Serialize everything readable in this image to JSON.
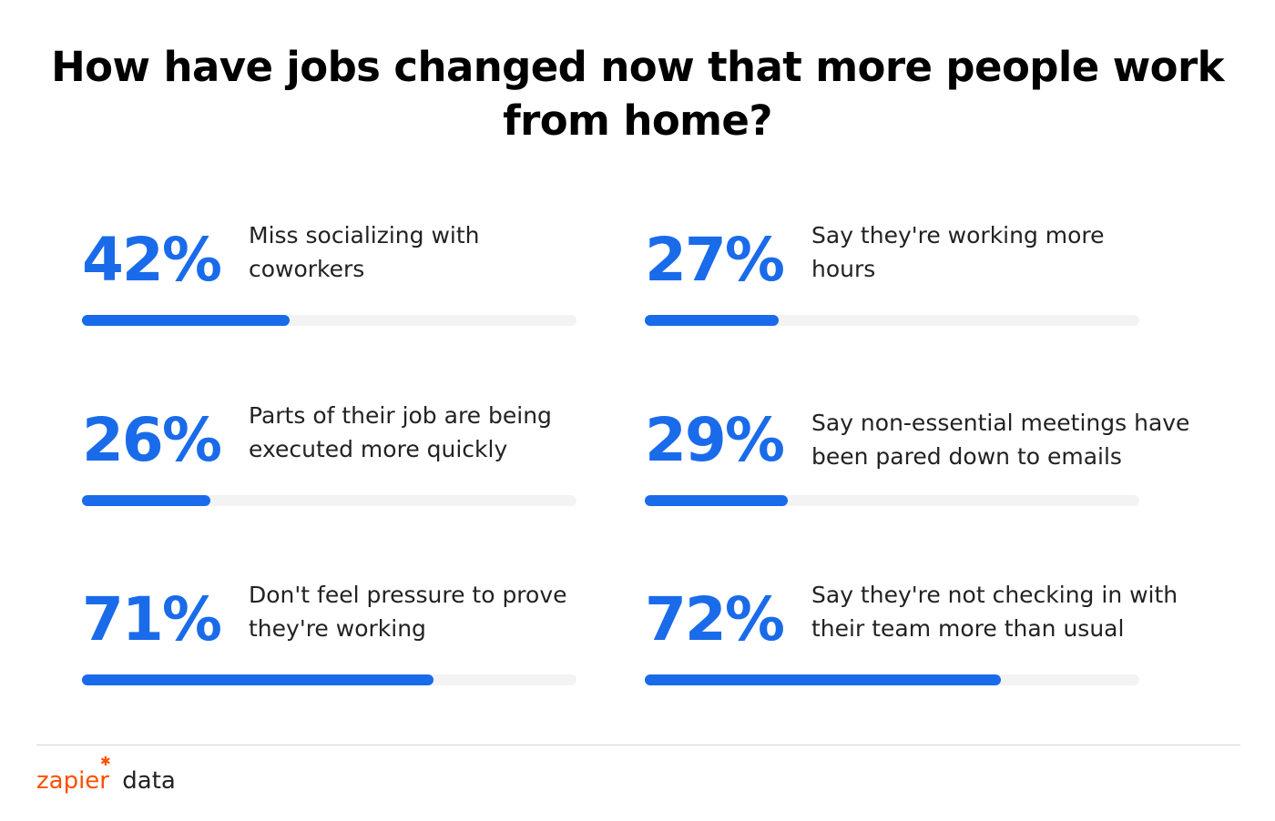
{
  "title": "How have jobs changed now that more people work from home?",
  "colors": {
    "accent": "#1a6bea",
    "track": "#f3f3f3",
    "brand": "#ff4f00"
  },
  "chart_data": {
    "type": "bar",
    "title": "How have jobs changed now that more people work from home?",
    "ylim": [
      0,
      100
    ],
    "grid": false,
    "items": [
      {
        "value": 42,
        "value_label": "42%",
        "label": "Miss socializing with coworkers"
      },
      {
        "value": 27,
        "value_label": "27%",
        "label": "Say they're working more hours"
      },
      {
        "value": 26,
        "value_label": "26%",
        "label": "Parts of their job are being executed more quickly"
      },
      {
        "value": 29,
        "value_label": "29%",
        "label": "Say non-essential meetings have been pared down to emails"
      },
      {
        "value": 71,
        "value_label": "71%",
        "label": "Don't feel pressure to prove they're working"
      },
      {
        "value": 72,
        "value_label": "72%",
        "label": "Say they're not checking in with their team more than usual"
      }
    ]
  },
  "footer": {
    "brand_name": "zapier",
    "brand_suffix": "data",
    "brand_icon": "asterisk-icon"
  }
}
